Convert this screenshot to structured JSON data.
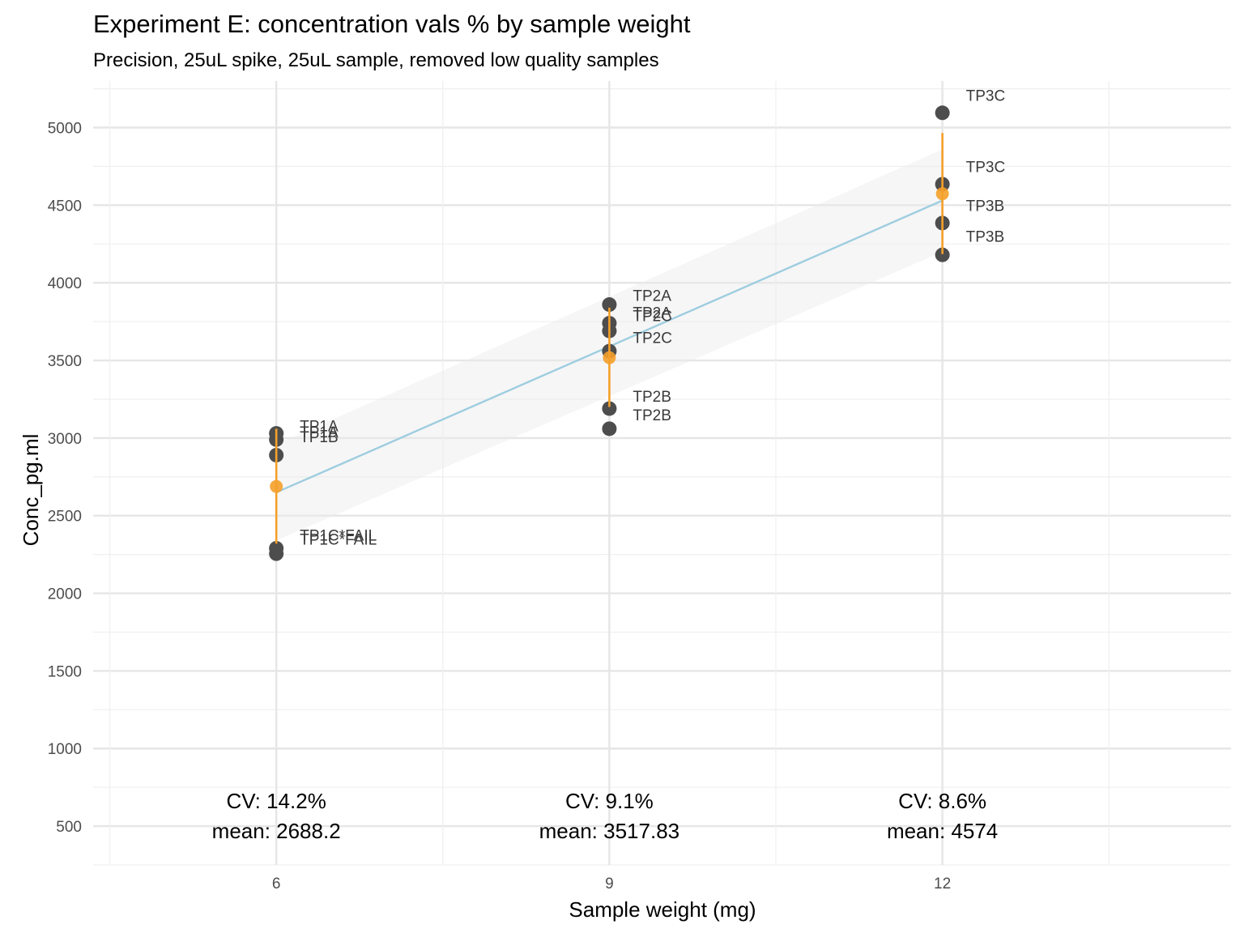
{
  "chart_data": {
    "type": "scatter",
    "title": "Experiment E: concentration vals % by sample weight",
    "subtitle": "Precision, 25uL spike, 25uL sample, removed low quality samples",
    "xlabel": "Sample weight (mg)",
    "ylabel": "Conc_pg.ml",
    "xlim": [
      4.35,
      14.6
    ],
    "ylim": [
      250,
      5300
    ],
    "x_ticks": [
      "6",
      "9",
      "12"
    ],
    "y_ticks": [
      "500",
      "1000",
      "1500",
      "2000",
      "2500",
      "3000",
      "3500",
      "4000",
      "4500",
      "5000"
    ],
    "points": [
      {
        "x": 6,
        "y": 3030,
        "label": "TP1A"
      },
      {
        "x": 6,
        "y": 2990,
        "label": "TP1A"
      },
      {
        "x": 6,
        "y": 2890,
        "label": "TP1B"
      },
      {
        "x": 6,
        "y": 2290,
        "label": "TP1C*FAIL"
      },
      {
        "x": 6,
        "y": 2255,
        "label": "TP1C*FAIL"
      },
      {
        "x": 9,
        "y": 3860,
        "label": "TP2A"
      },
      {
        "x": 9,
        "y": 3740,
        "label": "TP2A"
      },
      {
        "x": 9,
        "y": 3690,
        "label": "TP2C"
      },
      {
        "x": 9,
        "y": 3560,
        "label": "TP2C"
      },
      {
        "x": 9,
        "y": 3190,
        "label": "TP2B"
      },
      {
        "x": 9,
        "y": 3060,
        "label": "TP2B"
      },
      {
        "x": 12,
        "y": 5095,
        "label": "TP3C"
      },
      {
        "x": 12,
        "y": 4635,
        "label": "TP3C"
      },
      {
        "x": 12,
        "y": 4385,
        "label": "TP3B"
      },
      {
        "x": 12,
        "y": 4180,
        "label": "TP3B"
      }
    ],
    "point_labels": [
      {
        "text": "TP1A",
        "x": 6,
        "y": 3080
      },
      {
        "text": "TP1A",
        "x": 6,
        "y": 3040
      },
      {
        "text": "TP1B",
        "x": 6,
        "y": 3010
      },
      {
        "text": "TP1C*FAIL",
        "x": 6,
        "y": 2375
      },
      {
        "text": "TP1C*FAIL",
        "x": 6,
        "y": 2350
      },
      {
        "text": "TP2A",
        "x": 9,
        "y": 3920
      },
      {
        "text": "TP2A",
        "x": 9,
        "y": 3810
      },
      {
        "text": "TP2C",
        "x": 9,
        "y": 3790
      },
      {
        "text": "TP2C",
        "x": 9,
        "y": 3650
      },
      {
        "text": "TP2B",
        "x": 9,
        "y": 3270
      },
      {
        "text": "TP2B",
        "x": 9,
        "y": 3150
      },
      {
        "text": "TP3C",
        "x": 12,
        "y": 5210
      },
      {
        "text": "TP3C",
        "x": 12,
        "y": 4750
      },
      {
        "text": "TP3B",
        "x": 12,
        "y": 4500
      },
      {
        "text": "TP3B",
        "x": 12,
        "y": 4300
      }
    ],
    "means": [
      {
        "x": 6,
        "mean": 2688.2,
        "sd_low": 2320,
        "sd_high": 3060
      },
      {
        "x": 9,
        "mean": 3517.83,
        "sd_low": 3200,
        "sd_high": 3840
      },
      {
        "x": 12,
        "mean": 4574,
        "sd_low": 4185,
        "sd_high": 4965
      }
    ],
    "trend": {
      "x": [
        6,
        12
      ],
      "y": [
        2650,
        4530
      ],
      "ci_low": [
        2340,
        4200
      ],
      "ci_high": [
        2960,
        4860
      ]
    },
    "annotations": [
      {
        "x": 6,
        "cv": "CV: 14.2%",
        "mean": "mean: 2688.2"
      },
      {
        "x": 9,
        "cv": "CV: 9.1%",
        "mean": "mean: 3517.83"
      },
      {
        "x": 12,
        "cv": "CV: 8.6%",
        "mean": "mean: 4574"
      }
    ],
    "colors": {
      "point": "#4d4d4d",
      "mean": "#f5a02a",
      "trend": "#9ecde0",
      "ribbon": "#ebebeb",
      "grid": "#e6e6e6"
    }
  }
}
